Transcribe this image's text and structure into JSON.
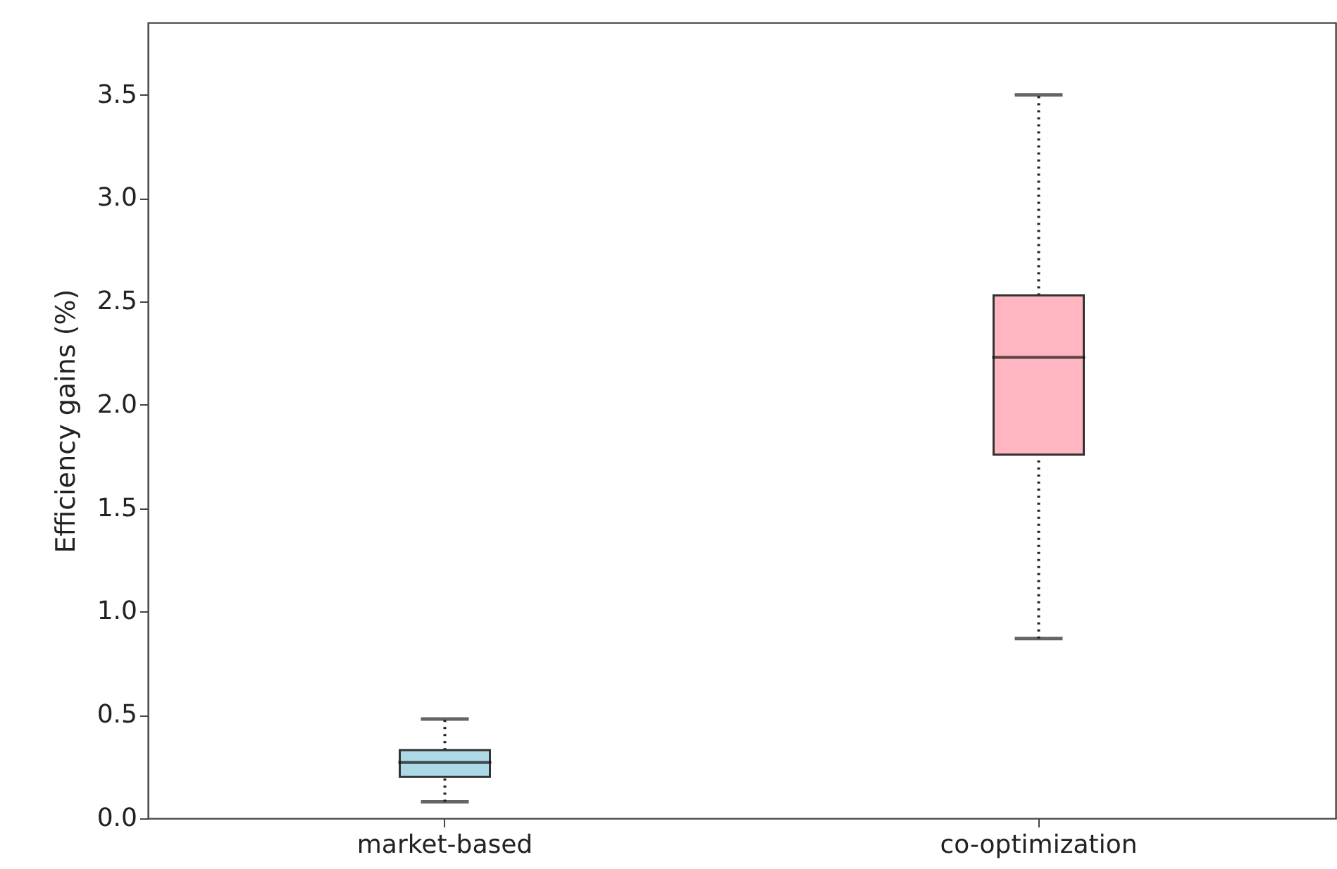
{
  "chart_data": {
    "type": "box",
    "ylabel": "Efficiency gains (%)",
    "categories": [
      "market-based",
      "co-optimization"
    ],
    "boxes": [
      {
        "low": 0.08,
        "q1": 0.2,
        "median": 0.27,
        "q3": 0.33,
        "high": 0.48
      },
      {
        "low": 0.87,
        "q1": 1.76,
        "median": 2.23,
        "q3": 2.53,
        "high": 3.5
      }
    ],
    "colors": [
      "#add8e6",
      "#ffb6c1"
    ],
    "ylim": [
      0,
      3.85
    ],
    "yticks": [
      {
        "value": 0,
        "label": "0.0"
      },
      0.5,
      {
        "value": 1,
        "label": "1.0"
      },
      1.5,
      {
        "value": 2,
        "label": "2.0"
      },
      2.5,
      {
        "value": 3,
        "label": "3.0"
      },
      3.5
    ],
    "grid": false,
    "line_style": "dotted"
  }
}
